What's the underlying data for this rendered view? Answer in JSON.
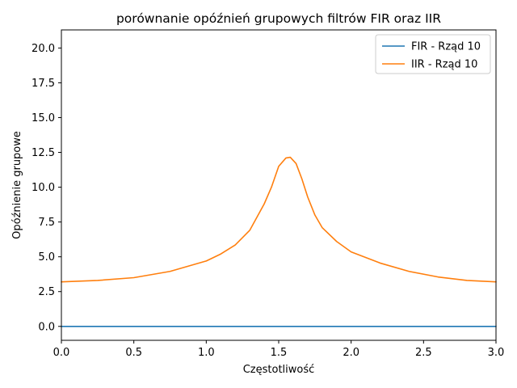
{
  "chart_data": {
    "type": "line",
    "title": "porównanie opóźnień grupowych filtrów FIR oraz IIR",
    "xlabel": "Częstotliwość",
    "ylabel": "Opóźnienie grupowe",
    "xlim": [
      0.0,
      3.0
    ],
    "ylim": [
      -1.0,
      21.3
    ],
    "xticks": [
      0.0,
      0.5,
      1.0,
      1.5,
      2.0,
      2.5,
      3.0
    ],
    "xtick_labels": [
      "0.0",
      "0.5",
      "1.0",
      "1.5",
      "2.0",
      "2.5",
      "3.0"
    ],
    "yticks": [
      0.0,
      2.5,
      5.0,
      7.5,
      10.0,
      12.5,
      15.0,
      17.5,
      20.0
    ],
    "ytick_labels": [
      "0.0",
      "2.5",
      "5.0",
      "7.5",
      "10.0",
      "12.5",
      "15.0",
      "17.5",
      "20.0"
    ],
    "grid": false,
    "legend_position": "top-right",
    "series": [
      {
        "name": "FIR - Rząd 10",
        "color": "#1f77b4",
        "x": [
          0.0,
          3.0
        ],
        "y": [
          0.0,
          0.0
        ]
      },
      {
        "name": "IIR - Rząd 10",
        "color": "#ff7f0e",
        "x": [
          0.0,
          0.25,
          0.5,
          0.75,
          1.0,
          1.1,
          1.2,
          1.3,
          1.4,
          1.45,
          1.5,
          1.55,
          1.58,
          1.62,
          1.66,
          1.7,
          1.75,
          1.8,
          1.9,
          2.0,
          2.2,
          2.4,
          2.6,
          2.8,
          3.0
        ],
        "y": [
          3.2,
          3.3,
          3.5,
          3.95,
          4.7,
          5.2,
          5.85,
          6.9,
          8.8,
          10.0,
          11.5,
          12.1,
          12.15,
          11.7,
          10.6,
          9.3,
          8.0,
          7.1,
          6.1,
          5.35,
          4.55,
          3.95,
          3.55,
          3.3,
          3.2
        ]
      }
    ]
  }
}
